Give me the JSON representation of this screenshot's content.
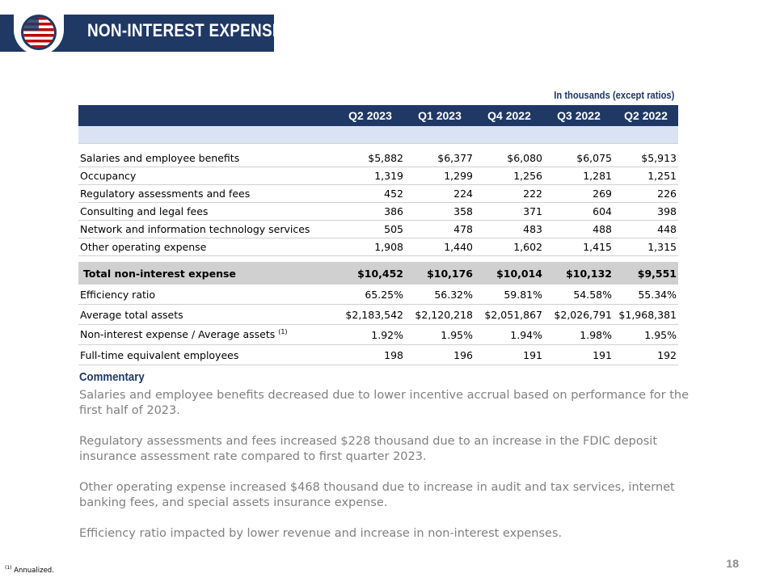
{
  "header": {
    "title": "NON-INTEREST EXPENSE",
    "units_note": "In thousands  (except ratios)"
  },
  "table": {
    "columns": [
      "Q2 2023",
      "Q1 2023",
      "Q4 2022",
      "Q3 2022",
      "Q2 2022"
    ],
    "rows": [
      {
        "label": "Salaries and employee benefits",
        "values": [
          "$5,882",
          "$6,377",
          "$6,080",
          "$6,075",
          "$5,913"
        ]
      },
      {
        "label": "Occupancy",
        "values": [
          "1,319",
          "1,299",
          "1,256",
          "1,281",
          "1,251"
        ]
      },
      {
        "label": "Regulatory assessments and fees",
        "values": [
          "452",
          "224",
          "222",
          "269",
          "226"
        ]
      },
      {
        "label": "Consulting and legal fees",
        "values": [
          "386",
          "358",
          "371",
          "604",
          "398"
        ]
      },
      {
        "label": "Network and information technology services",
        "values": [
          "505",
          "478",
          "483",
          "488",
          "448"
        ]
      },
      {
        "label": "Other operating expense",
        "values": [
          "1,908",
          "1,440",
          "1,602",
          "1,415",
          "1,315"
        ]
      }
    ],
    "total": {
      "label": "Total non-interest expense",
      "values": [
        "$10,452",
        "$10,176",
        "$10,014",
        "$10,132",
        "$9,551"
      ]
    },
    "metrics": [
      {
        "label": "Efficiency ratio",
        "values": [
          "65.25%",
          "56.32%",
          "59.81%",
          "54.58%",
          "55.34%"
        ]
      },
      {
        "label": "Average total assets",
        "values": [
          "$2,183,542",
          "$2,120,218",
          "$2,051,867",
          "$2,026,791",
          "$1,968,381"
        ]
      },
      {
        "label": "Non-interest expense / Average assets",
        "note": "(1)",
        "values": [
          "1.92%",
          "1.95%",
          "1.94%",
          "1.98%",
          "1.95%"
        ]
      },
      {
        "label": "Full-time equivalent employees",
        "values": [
          "198",
          "196",
          "191",
          "191",
          "192"
        ]
      }
    ]
  },
  "commentary": {
    "heading": "Commentary",
    "paragraphs": [
      "Salaries and employee benefits decreased due to lower incentive accrual based on performance for the first half of 2023.",
      "Regulatory assessments and fees increased $228 thousand due to an increase in the FDIC deposit insurance assessment rate compared to first quarter 2023.",
      "Other operating expense increased $468 thousand due to increase in audit and tax services, internet banking fees, and special assets insurance expense.",
      "Efficiency ratio impacted by lower revenue and increase in non-interest expenses."
    ]
  },
  "footnote": {
    "marker": "(1)",
    "text": "Annualized."
  },
  "page_number": "18",
  "colors": {
    "navy": "#1f3864",
    "light_blue": "#dae3f3",
    "total_gray": "#d0d0d0",
    "commentary_gray": "#808080",
    "logo_red": "#c00000"
  },
  "icons": {
    "logo": "flag-globe-logo"
  }
}
